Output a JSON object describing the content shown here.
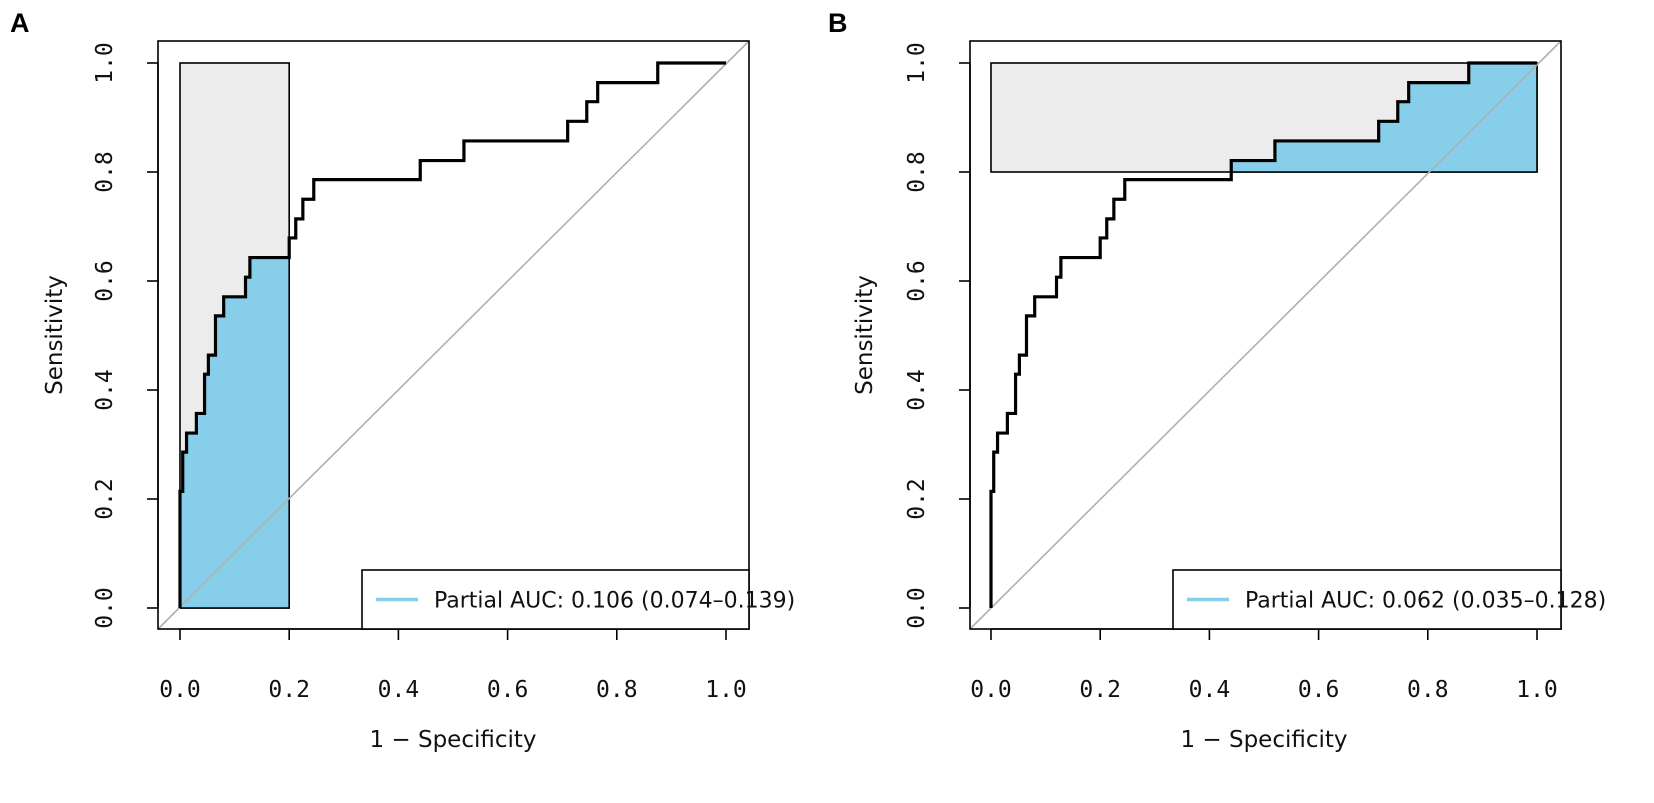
{
  "figure": {
    "colors": {
      "fill": "#87ceeb",
      "box": "#ececec",
      "curve": "#000000",
      "diagonal": "#b0b0b0",
      "legend_line": "#87ceeb"
    }
  },
  "chart_data": [
    {
      "type": "line",
      "panel": "A",
      "xlabel": "1 − Specificity",
      "ylabel": "Sensitivity",
      "xlim": [
        0,
        1
      ],
      "ylim": [
        0,
        1
      ],
      "x_ticks": [
        "0.0",
        "0.2",
        "0.4",
        "0.6",
        "0.8",
        "1.0"
      ],
      "y_ticks": [
        "0.0",
        "0.2",
        "0.4",
        "0.6",
        "0.8",
        "1.0"
      ],
      "legend": "Partial AUC: 0.106 (0.074–0.139)",
      "legend_position": "bottom-right",
      "partial_region": {
        "axis": "specificity",
        "fpr_range": [
          0,
          0.2
        ]
      },
      "roc_points": [
        [
          0,
          0
        ],
        [
          0,
          0.214
        ],
        [
          0.005,
          0.214
        ],
        [
          0.005,
          0.286
        ],
        [
          0.012,
          0.286
        ],
        [
          0.012,
          0.321
        ],
        [
          0.03,
          0.321
        ],
        [
          0.03,
          0.357
        ],
        [
          0.045,
          0.357
        ],
        [
          0.045,
          0.429
        ],
        [
          0.052,
          0.429
        ],
        [
          0.052,
          0.464
        ],
        [
          0.065,
          0.464
        ],
        [
          0.065,
          0.536
        ],
        [
          0.08,
          0.536
        ],
        [
          0.08,
          0.571
        ],
        [
          0.12,
          0.571
        ],
        [
          0.12,
          0.607
        ],
        [
          0.128,
          0.607
        ],
        [
          0.128,
          0.643
        ],
        [
          0.2,
          0.643
        ],
        [
          0.2,
          0.679
        ],
        [
          0.212,
          0.679
        ],
        [
          0.212,
          0.714
        ],
        [
          0.225,
          0.714
        ],
        [
          0.225,
          0.75
        ],
        [
          0.245,
          0.75
        ],
        [
          0.245,
          0.786
        ],
        [
          0.44,
          0.786
        ],
        [
          0.44,
          0.821
        ],
        [
          0.52,
          0.821
        ],
        [
          0.52,
          0.857
        ],
        [
          0.71,
          0.857
        ],
        [
          0.71,
          0.893
        ],
        [
          0.745,
          0.893
        ],
        [
          0.745,
          0.929
        ],
        [
          0.765,
          0.929
        ],
        [
          0.765,
          0.964
        ],
        [
          0.875,
          0.964
        ],
        [
          0.875,
          1
        ],
        [
          1,
          1
        ]
      ]
    },
    {
      "type": "line",
      "panel": "B",
      "xlabel": "1 − Specificity",
      "ylabel": "Sensitivity",
      "xlim": [
        0,
        1
      ],
      "ylim": [
        0,
        1
      ],
      "x_ticks": [
        "0.0",
        "0.2",
        "0.4",
        "0.6",
        "0.8",
        "1.0"
      ],
      "y_ticks": [
        "0.0",
        "0.2",
        "0.4",
        "0.6",
        "0.8",
        "1.0"
      ],
      "legend": "Partial AUC: 0.062 (0.035–0.128)",
      "legend_position": "bottom-right",
      "partial_region": {
        "axis": "sensitivity",
        "tpr_range": [
          0.8,
          1
        ]
      },
      "roc_points": [
        [
          0,
          0
        ],
        [
          0,
          0.214
        ],
        [
          0.005,
          0.214
        ],
        [
          0.005,
          0.286
        ],
        [
          0.012,
          0.286
        ],
        [
          0.012,
          0.321
        ],
        [
          0.03,
          0.321
        ],
        [
          0.03,
          0.357
        ],
        [
          0.045,
          0.357
        ],
        [
          0.045,
          0.429
        ],
        [
          0.052,
          0.429
        ],
        [
          0.052,
          0.464
        ],
        [
          0.065,
          0.464
        ],
        [
          0.065,
          0.536
        ],
        [
          0.08,
          0.536
        ],
        [
          0.08,
          0.571
        ],
        [
          0.12,
          0.571
        ],
        [
          0.12,
          0.607
        ],
        [
          0.128,
          0.607
        ],
        [
          0.128,
          0.643
        ],
        [
          0.2,
          0.643
        ],
        [
          0.2,
          0.679
        ],
        [
          0.212,
          0.679
        ],
        [
          0.212,
          0.714
        ],
        [
          0.225,
          0.714
        ],
        [
          0.225,
          0.75
        ],
        [
          0.245,
          0.75
        ],
        [
          0.245,
          0.786
        ],
        [
          0.44,
          0.786
        ],
        [
          0.44,
          0.821
        ],
        [
          0.52,
          0.821
        ],
        [
          0.52,
          0.857
        ],
        [
          0.71,
          0.857
        ],
        [
          0.71,
          0.893
        ],
        [
          0.745,
          0.893
        ],
        [
          0.745,
          0.929
        ],
        [
          0.765,
          0.929
        ],
        [
          0.765,
          0.964
        ],
        [
          0.875,
          0.964
        ],
        [
          0.875,
          1
        ],
        [
          1,
          1
        ]
      ]
    }
  ]
}
